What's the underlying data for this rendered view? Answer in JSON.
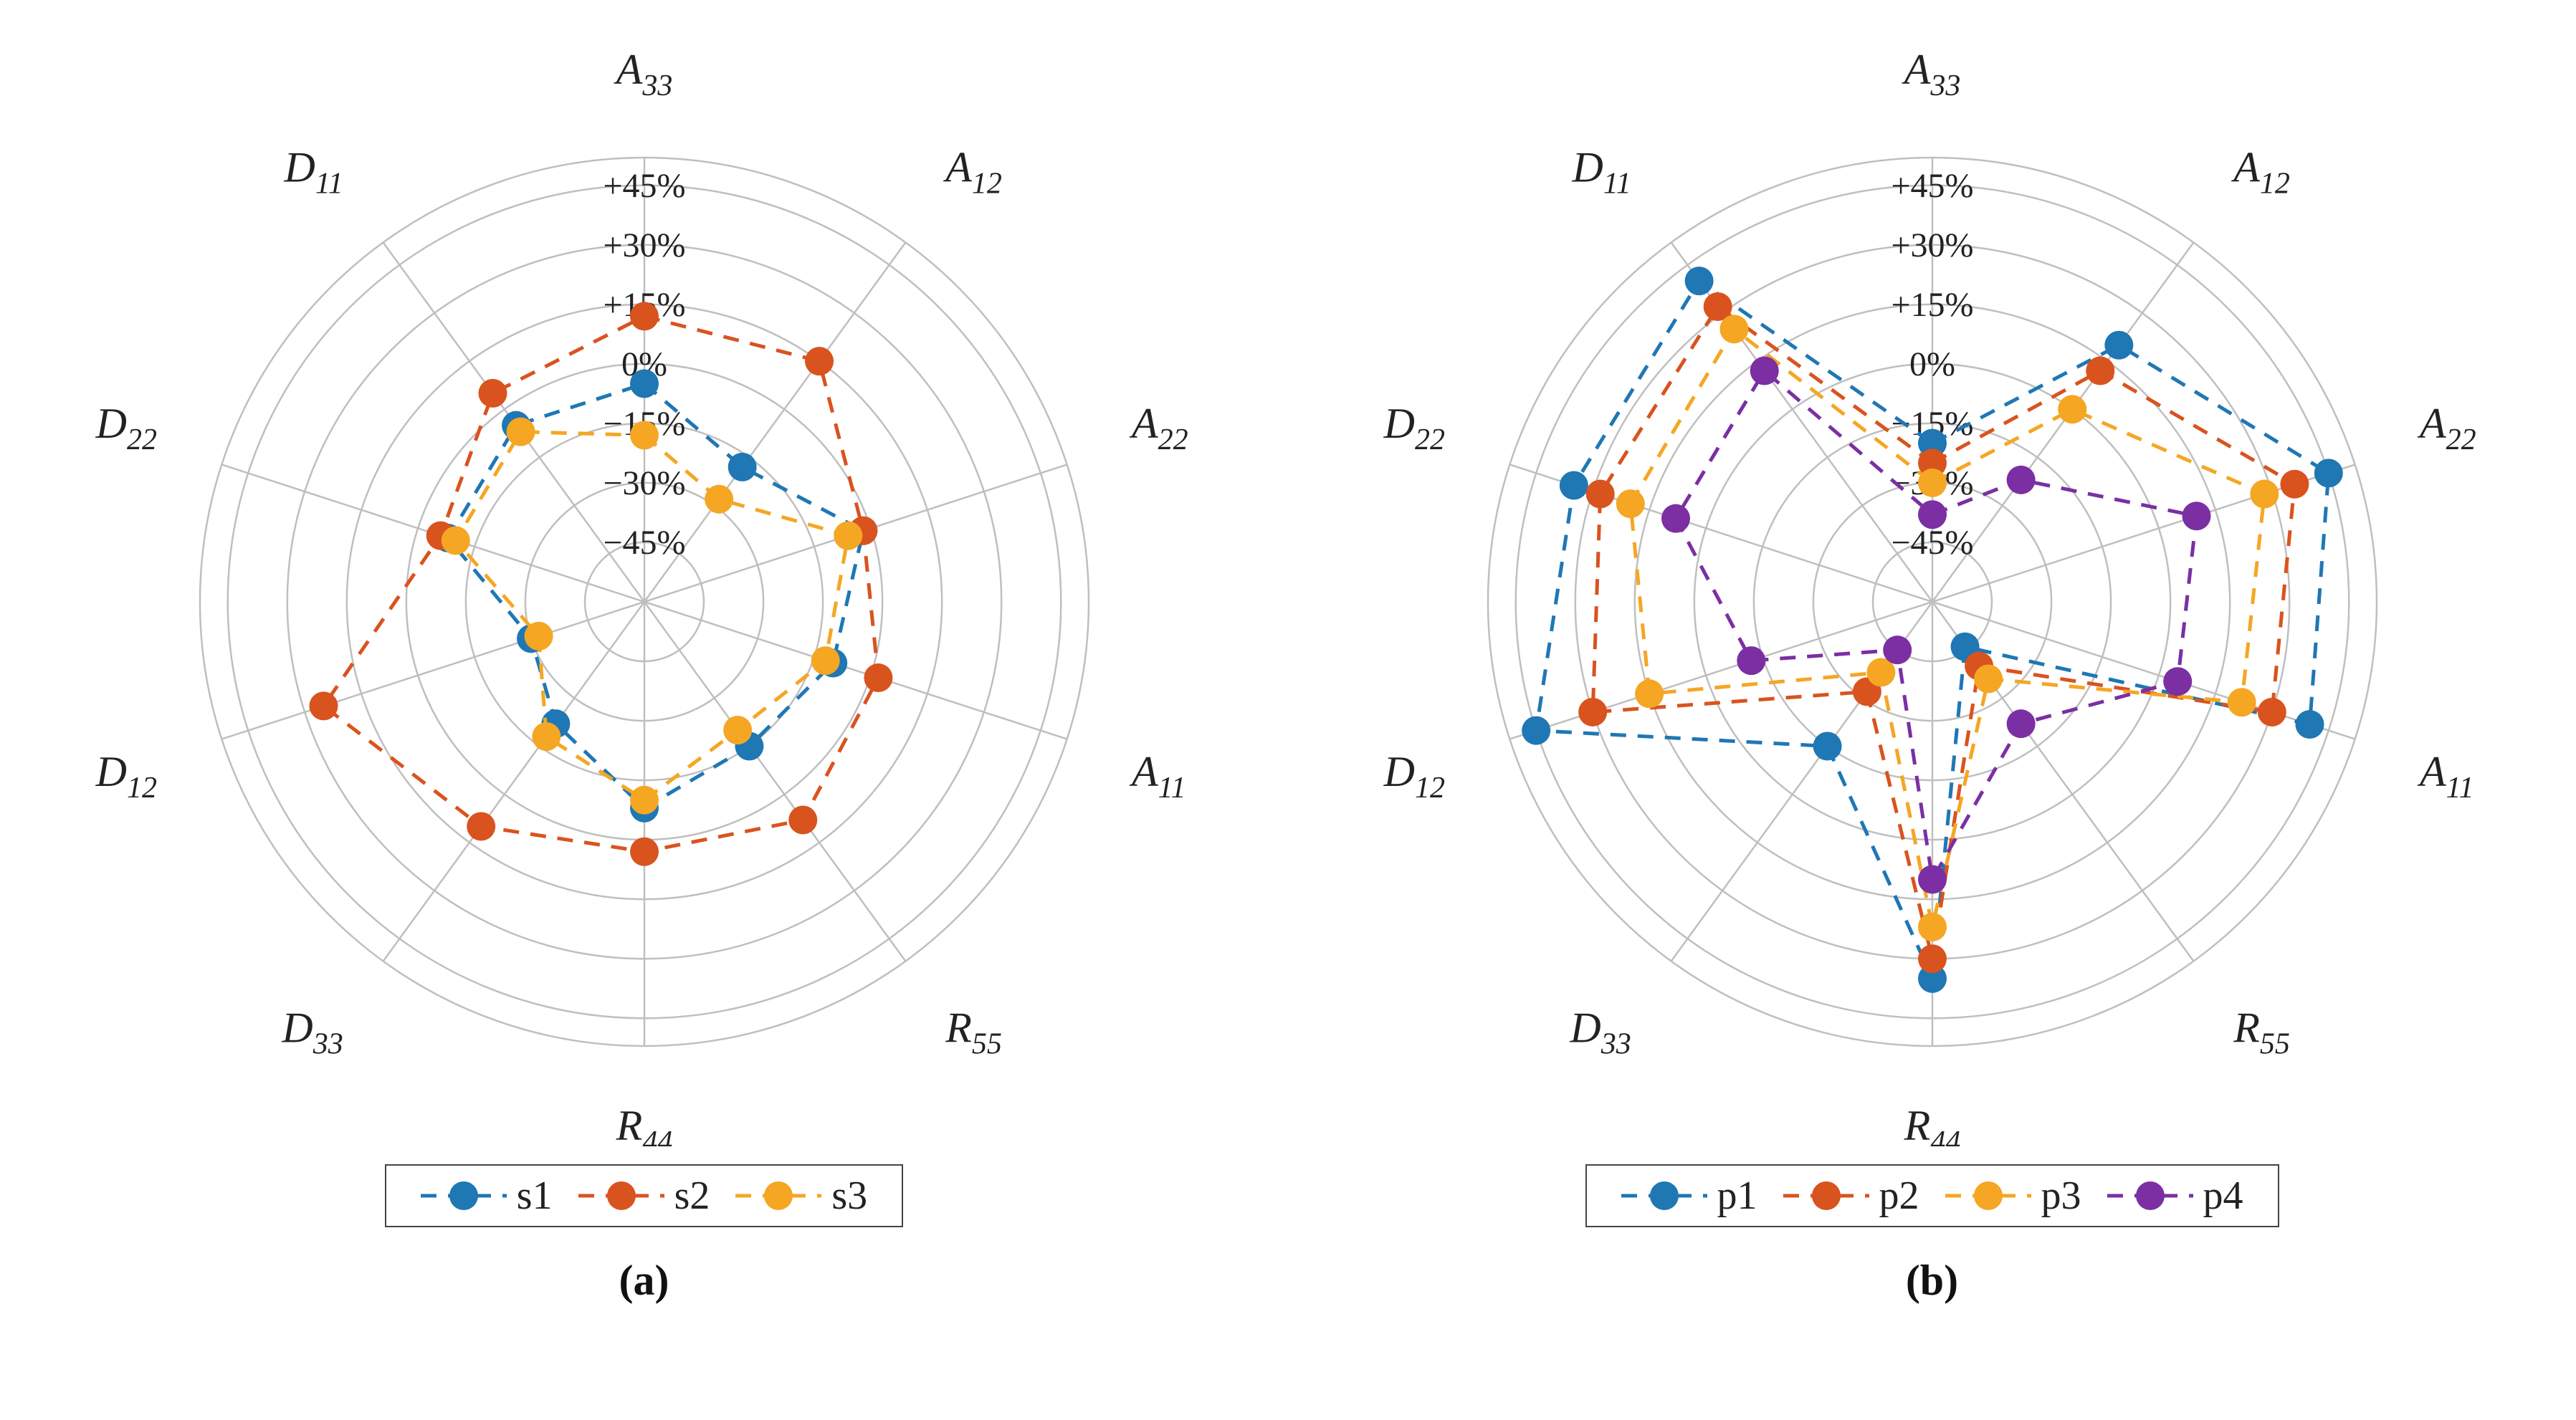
{
  "background_color": "#ffffff",
  "grid_color": "#bfbfbf",
  "grid_stroke_width": 2.5,
  "axis_label_color": "#222222",
  "axis_label_fontsize": 60,
  "ring_label_fontsize": 48,
  "legend_border_color": "#444444",
  "legend_fontsize": 56,
  "subcaption_fontsize": 60,
  "marker_radius": 20,
  "line_stroke_width": 5,
  "dash_pattern": "22 16",
  "axes": [
    "A33",
    "A12",
    "A22",
    "A11",
    "R55",
    "R44",
    "D33",
    "D12",
    "D22",
    "D11"
  ],
  "axis_display": {
    "A33": {
      "base": "A",
      "sub": "33"
    },
    "A12": {
      "base": "A",
      "sub": "12"
    },
    "A22": {
      "base": "A",
      "sub": "22"
    },
    "A11": {
      "base": "A",
      "sub": "11"
    },
    "R55": {
      "base": "R",
      "sub": "55"
    },
    "R44": {
      "base": "R",
      "sub": "44"
    },
    "D33": {
      "base": "D",
      "sub": "33"
    },
    "D12": {
      "base": "D",
      "sub": "12"
    },
    "D22": {
      "base": "D",
      "sub": "22"
    },
    "D11": {
      "base": "D",
      "sub": "11"
    }
  },
  "rings": [
    {
      "value": -45,
      "label": "−45%"
    },
    {
      "value": -30,
      "label": "−30%"
    },
    {
      "value": -15,
      "label": "−15%"
    },
    {
      "value": 0,
      "label": "0%"
    },
    {
      "value": 15,
      "label": "+15%"
    },
    {
      "value": 30,
      "label": "+30%"
    },
    {
      "value": 45,
      "label": "+45%"
    }
  ],
  "value_min": -60,
  "value_max": 52,
  "colors": {
    "blue": "#1f77b4",
    "orange": "#d9531e",
    "yellow": "#f5a623",
    "purple": "#7b2fa3"
  },
  "panel_a": {
    "type": "radar",
    "subcaption": "(a)",
    "series": [
      {
        "key": "s1",
        "label": "s1",
        "color": "#1f77b4",
        "data": {
          "A33": -5,
          "A12": -18,
          "A22": -2,
          "A11": -10,
          "R55": -15,
          "R44": -8,
          "D33": -22,
          "D12": -30,
          "D22": -8,
          "D11": -5
        }
      },
      {
        "key": "s2",
        "label": "s2",
        "color": "#d9531e",
        "data": {
          "A33": 12,
          "A12": 15,
          "A22": -2,
          "A11": 2,
          "R55": 8,
          "R44": 3,
          "D33": 10,
          "D12": 25,
          "D22": -6,
          "D11": 5
        }
      },
      {
        "key": "s3",
        "label": "s3",
        "color": "#f5a623",
        "data": {
          "A33": -18,
          "A12": -28,
          "A22": -6,
          "A11": -12,
          "R55": -20,
          "R44": -10,
          "D33": -18,
          "D12": -32,
          "D22": -10,
          "D11": -7
        }
      }
    ]
  },
  "panel_b": {
    "type": "radar",
    "subcaption": "(b)",
    "series": [
      {
        "key": "p1",
        "label": "p1",
        "color": "#1f77b4",
        "data": {
          "A33": -20,
          "A12": 20,
          "A22": 45,
          "A11": 40,
          "R55": -46,
          "R44": 35,
          "D33": -15,
          "D12": 45,
          "D22": 35,
          "D11": 40
        }
      },
      {
        "key": "p2",
        "label": "p2",
        "color": "#d9531e",
        "data": {
          "A33": -25,
          "A12": 12,
          "A22": 36,
          "A11": 30,
          "R55": -40,
          "R44": 30,
          "D33": -32,
          "D12": 30,
          "D22": 28,
          "D11": 32
        }
      },
      {
        "key": "p3",
        "label": "p3",
        "color": "#f5a623",
        "data": {
          "A33": -30,
          "A12": 0,
          "A22": 28,
          "A11": 22,
          "R55": -36,
          "R44": 22,
          "D33": -38,
          "D12": 15,
          "D22": 20,
          "D11": 25
        }
      },
      {
        "key": "p4",
        "label": "p4",
        "color": "#7b2fa3",
        "data": {
          "A33": -38,
          "A12": -22,
          "A22": 10,
          "A11": 5,
          "R55": -22,
          "R44": 10,
          "D33": -45,
          "D12": -12,
          "D22": 8,
          "D11": 12
        }
      }
    ]
  }
}
